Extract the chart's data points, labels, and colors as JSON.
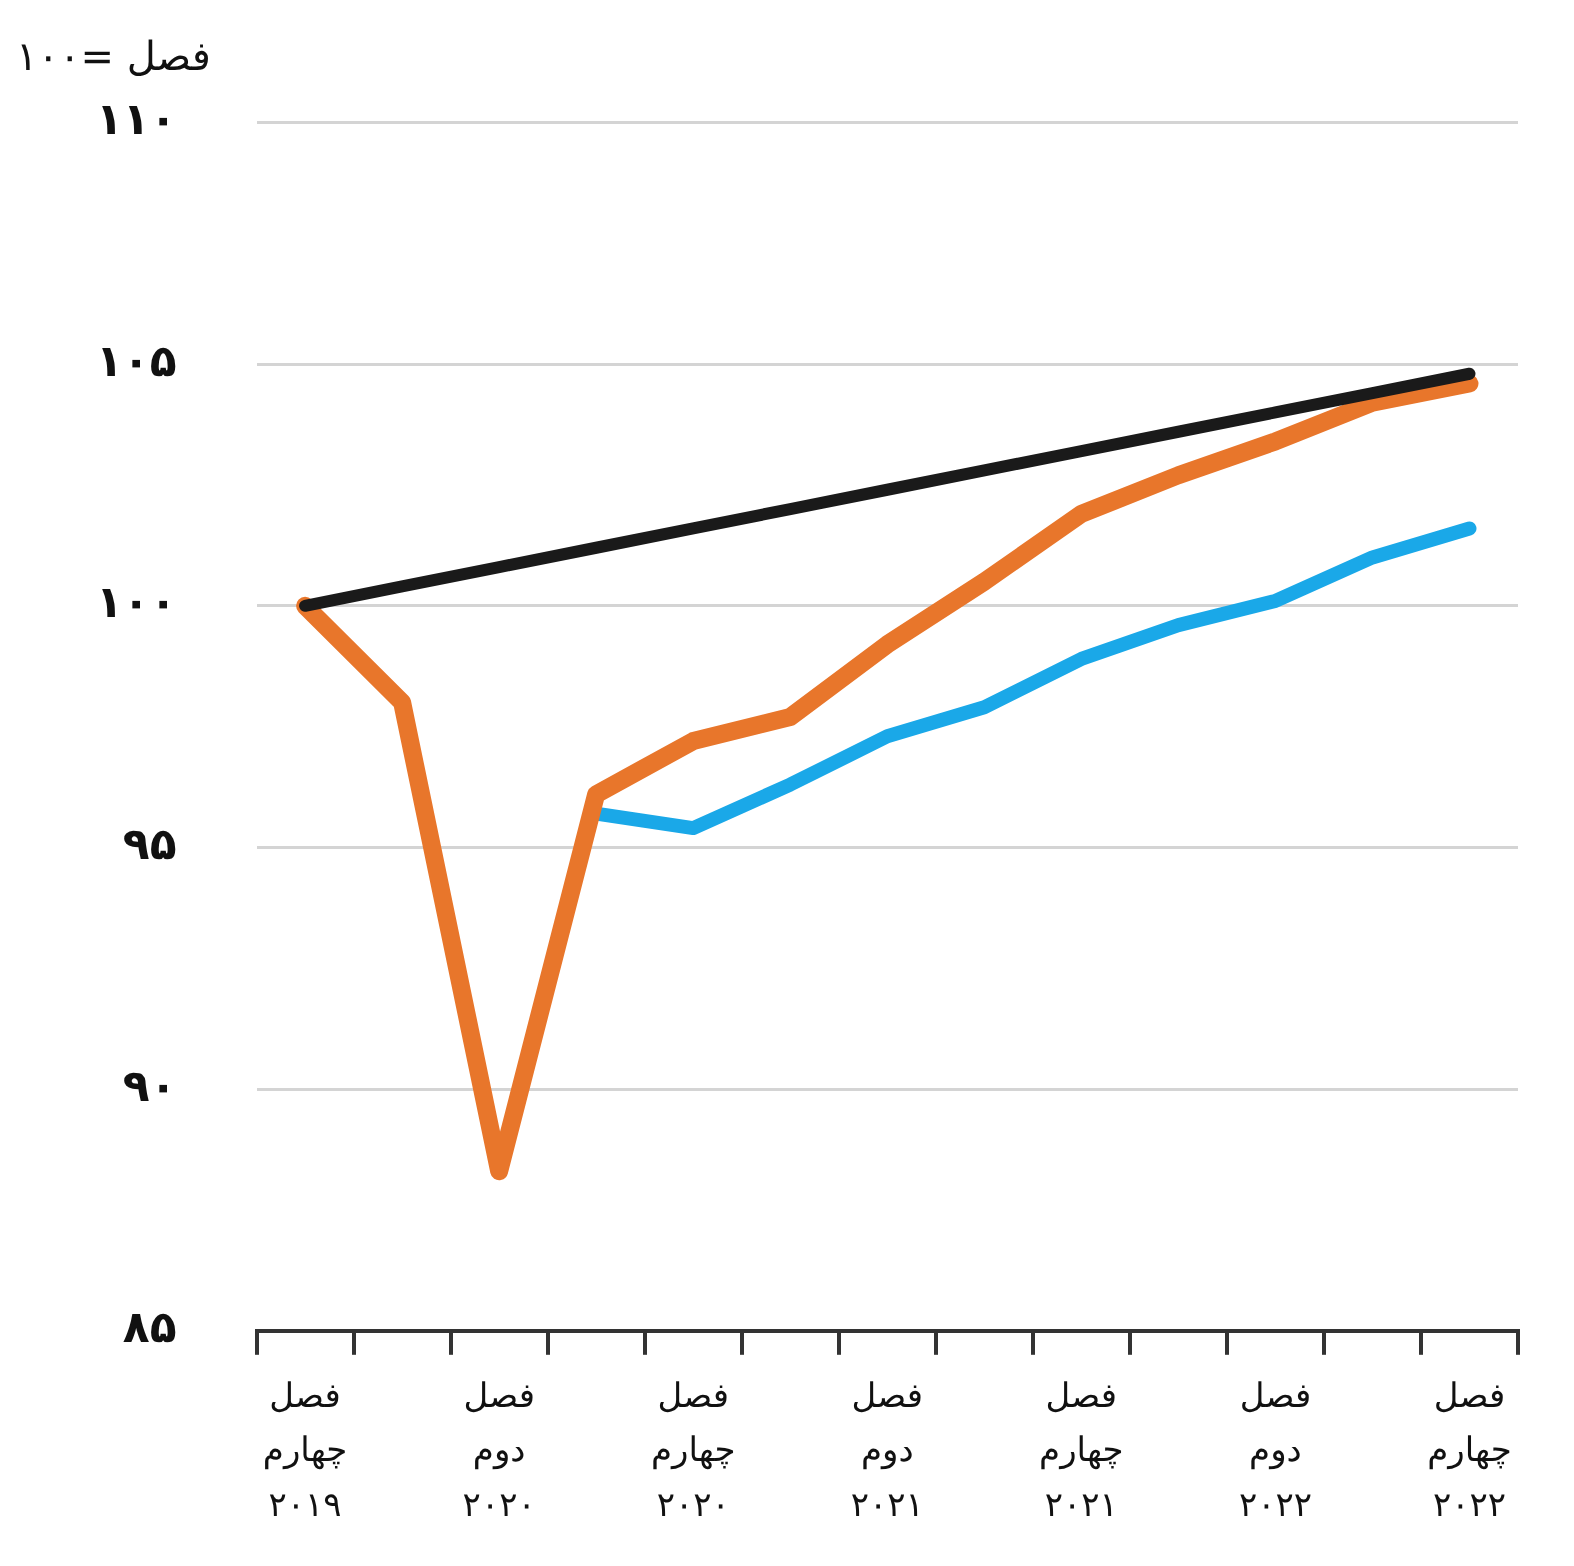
{
  "chart_data": {
    "type": "line",
    "ylabel": "فصل =۱۰۰",
    "categories": [
      "فصل\nچهارم\n۲۰۱۹",
      null,
      "فصل\nدوم\n۲۰۲۰",
      null,
      "فصل\nچهارم\n۲۰۲۰",
      null,
      "فصل\nدوم\n۲۰۲۱",
      null,
      "فصل\nچهارم\n۲۰۲۱",
      null,
      "فصل\nدوم\n۲۰۲۲",
      null,
      "فصل\nچهارم\n۲۰۲۲"
    ],
    "series": [
      {
        "color": "#1a1a1a",
        "values": [
          100,
          100.4,
          100.8,
          101.2,
          101.6,
          102.0,
          102.4,
          102.8,
          103.2,
          103.6,
          104.0,
          104.4,
          104.8
        ]
      },
      {
        "color": "#e8762b",
        "values": [
          100,
          98.0,
          88.3,
          96.1,
          97.2,
          97.7,
          99.2,
          100.5,
          101.9,
          102.7,
          103.4,
          104.2,
          104.6
        ]
      },
      {
        "color": "#1aa8e8",
        "values": [
          null,
          null,
          null,
          95.7,
          95.4,
          96.3,
          97.3,
          97.9,
          98.9,
          99.6,
          100.1,
          101.0,
          101.6
        ]
      }
    ],
    "ylim": [
      85,
      110
    ],
    "yticks": [
      {
        "value": 85,
        "label": "۸۵"
      },
      {
        "value": 90,
        "label": "۹۰"
      },
      {
        "value": 95,
        "label": "۹۵"
      },
      {
        "value": 100,
        "label": "۱۰۰"
      },
      {
        "value": 105,
        "label": "۱۰۵"
      },
      {
        "value": 110,
        "label": "۱۱۰"
      }
    ],
    "grid": "y",
    "legend": false,
    "marker": "none",
    "line_style": "solid"
  }
}
